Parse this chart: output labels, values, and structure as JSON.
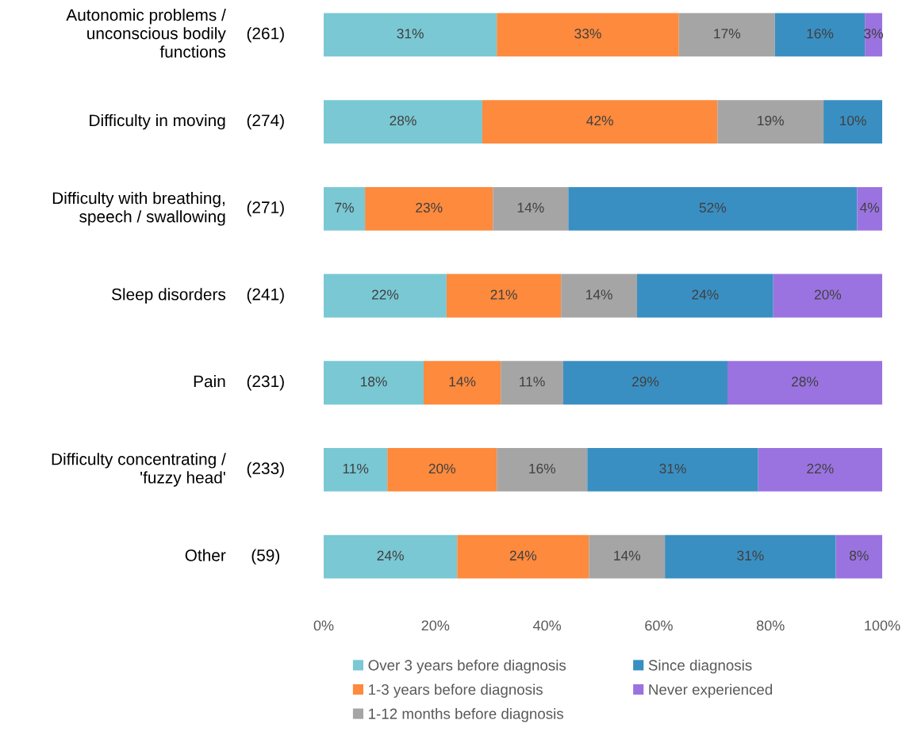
{
  "chart_data": {
    "type": "bar",
    "orientation": "horizontal",
    "stacked": true,
    "categories": [
      "Autonomic problems /\nunconscious bodily\nfunctions  (261)",
      "Difficulty in moving  (274)",
      "Difficulty with breathing,\nspeech / swallowing  (271)",
      "Sleep disorders  (241)",
      "Pain  (231)",
      "Difficulty concentrating /\n'fuzzy head'  (233)",
      "Other  (59)"
    ],
    "series": [
      {
        "name": "Over 3 years before diagnosis",
        "color": "#7ac8d4",
        "values": [
          31.0,
          28.4,
          7.4,
          22.0,
          17.9,
          11.4,
          23.9
        ],
        "value_labels": [
          "31%",
          "28%",
          "7%",
          "22%",
          "18%",
          "11%",
          "24%"
        ]
      },
      {
        "name": "1-3 years before diagnosis",
        "color": "#fd8a3d",
        "values": [
          32.6,
          42.1,
          22.9,
          20.5,
          13.8,
          19.6,
          23.6
        ],
        "value_labels": [
          "33%",
          "42%",
          "23%",
          "21%",
          "14%",
          "20%",
          "24%"
        ]
      },
      {
        "name": "1-12 months before diagnosis",
        "color": "#a5a5a5",
        "values": [
          17.2,
          19.0,
          13.5,
          13.6,
          11.2,
          16.2,
          13.6
        ],
        "value_labels": [
          "17%",
          "19%",
          "14%",
          "14%",
          "11%",
          "16%",
          "14%"
        ]
      },
      {
        "name": "Since diagnosis",
        "color": "#3a8fc2",
        "values": [
          16.1,
          10.5,
          51.7,
          24.4,
          29.4,
          30.6,
          30.6
        ],
        "value_labels": [
          "16%",
          "10%",
          "52%",
          "24%",
          "29%",
          "31%",
          "31%"
        ]
      },
      {
        "name": "Never experienced",
        "color": "#9a73e0",
        "values": [
          3.1,
          null,
          4.5,
          19.5,
          27.7,
          22.2,
          8.3
        ],
        "value_labels": [
          "3%",
          null,
          "4%",
          "20%",
          "28%",
          "22%",
          "8%"
        ]
      }
    ],
    "xlim": [
      0,
      100
    ],
    "xticks": [
      {
        "value": 0,
        "label": "0%"
      },
      {
        "value": 20,
        "label": "20%"
      },
      {
        "value": 40,
        "label": "40%"
      },
      {
        "value": 60,
        "label": "60%"
      },
      {
        "value": 80,
        "label": "80%"
      },
      {
        "value": 100,
        "label": "100%"
      }
    ],
    "grid": false,
    "legend": "bottom"
  }
}
